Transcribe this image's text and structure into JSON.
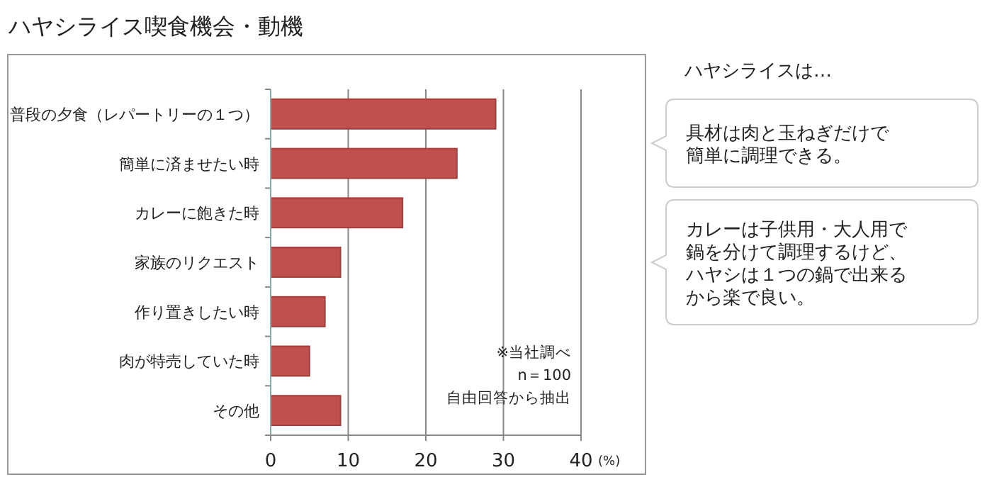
{
  "chart_data": {
    "type": "bar",
    "orientation": "horizontal",
    "title": "ハヤシライス喫食機会・動機",
    "categories": [
      "普段の夕食（レパートリーの１つ）",
      "簡単に済ませたい時",
      "カレーに飽きた時",
      "家族のリクエスト",
      "作り置きしたい時",
      "肉が特売していた時",
      "その他"
    ],
    "values": [
      29,
      24,
      17,
      9,
      7,
      5,
      9
    ],
    "color": "#c0504d",
    "xlim": [
      0,
      40
    ],
    "xticks": [
      0,
      10,
      20,
      30,
      40
    ],
    "xlabel": "(%)",
    "grid": "x",
    "annotations": [
      "ハヤシライスは…",
      "具材は肉と玉ねぎだけで簡単に調理できる。",
      "カレーは子供用・大人用で鍋を分けて調理するけど、ハヤシは１つの鍋で出来るから楽で良い。",
      "※当社調べ",
      "n＝100",
      "自由回答から抽出"
    ]
  }
}
